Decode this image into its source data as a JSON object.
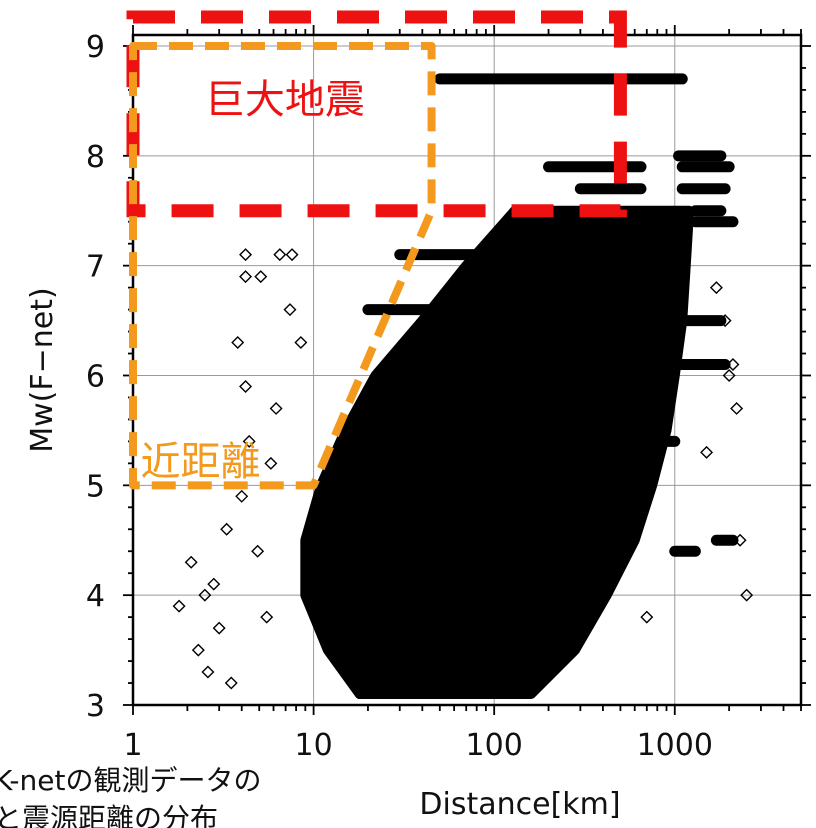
{
  "chart_data": {
    "type": "scatter",
    "xlabel": "Distance[km]",
    "ylabel": "Mw(F−net)",
    "xscale": "log",
    "xlim": [
      1,
      5000
    ],
    "ylim": [
      3,
      9.1
    ],
    "x_ticks": [
      1,
      10,
      100,
      1000
    ],
    "x_tick_labels": [
      "1",
      "10",
      "100",
      "1000"
    ],
    "y_ticks": [
      3,
      4,
      5,
      6,
      7,
      8,
      9
    ],
    "y_tick_labels": [
      "3",
      "4",
      "5",
      "6",
      "7",
      "8",
      "9"
    ],
    "grid": true,
    "marker": "diamond-open",
    "marker_color": "#000000",
    "dense_cloud": [
      {
        "mw": 3.1,
        "x_min": 18,
        "x_max": 160
      },
      {
        "mw": 3.5,
        "x_min": 12,
        "x_max": 280
      },
      {
        "mw": 4.0,
        "x_min": 9,
        "x_max": 420
      },
      {
        "mw": 4.5,
        "x_min": 9,
        "x_max": 600
      },
      {
        "mw": 5.0,
        "x_min": 11,
        "x_max": 750
      },
      {
        "mw": 5.5,
        "x_min": 15,
        "x_max": 900
      },
      {
        "mw": 6.0,
        "x_min": 22,
        "x_max": 1000
      },
      {
        "mw": 6.5,
        "x_min": 40,
        "x_max": 1100
      },
      {
        "mw": 7.0,
        "x_min": 70,
        "x_max": 1150
      },
      {
        "mw": 7.5,
        "x_min": 130,
        "x_max": 1200
      }
    ],
    "bands": [
      {
        "mw": 8.7,
        "x_min": 50,
        "x_max": 1100
      },
      {
        "mw": 8.0,
        "x_min": 1050,
        "x_max": 1800
      },
      {
        "mw": 7.9,
        "x_min": 200,
        "x_max": 650
      },
      {
        "mw": 7.9,
        "x_min": 1100,
        "x_max": 2000
      },
      {
        "mw": 7.7,
        "x_min": 300,
        "x_max": 650
      },
      {
        "mw": 7.7,
        "x_min": 1100,
        "x_max": 1900
      },
      {
        "mw": 7.5,
        "x_min": 1300,
        "x_max": 1800
      },
      {
        "mw": 7.4,
        "x_min": 1300,
        "x_max": 2100
      },
      {
        "mw": 7.1,
        "x_min": 30,
        "x_max": 200
      },
      {
        "mw": 6.6,
        "x_min": 20,
        "x_max": 80
      },
      {
        "mw": 6.5,
        "x_min": 800,
        "x_max": 1800
      },
      {
        "mw": 6.1,
        "x_min": 900,
        "x_max": 1900
      },
      {
        "mw": 5.4,
        "x_min": 800,
        "x_max": 1000
      },
      {
        "mw": 4.5,
        "x_min": 1700,
        "x_max": 2100
      },
      {
        "mw": 4.4,
        "x_min": 1000,
        "x_max": 1300
      }
    ],
    "scatter_points": [
      {
        "x": 4.2,
        "y": 7.1
      },
      {
        "x": 4.2,
        "y": 6.9
      },
      {
        "x": 5.1,
        "y": 6.9
      },
      {
        "x": 6.5,
        "y": 7.1
      },
      {
        "x": 7.4,
        "y": 6.6
      },
      {
        "x": 7.6,
        "y": 7.1
      },
      {
        "x": 2.1,
        "y": 4.3
      },
      {
        "x": 1.8,
        "y": 3.9
      },
      {
        "x": 2.5,
        "y": 4.0
      },
      {
        "x": 3.0,
        "y": 3.7
      },
      {
        "x": 2.3,
        "y": 3.5
      },
      {
        "x": 4.4,
        "y": 5.4
      },
      {
        "x": 3.3,
        "y": 4.6
      },
      {
        "x": 4.0,
        "y": 4.9
      },
      {
        "x": 2.6,
        "y": 3.3
      },
      {
        "x": 3.8,
        "y": 6.3
      },
      {
        "x": 4.2,
        "y": 5.9
      },
      {
        "x": 2.8,
        "y": 4.1
      },
      {
        "x": 5.8,
        "y": 5.2
      },
      {
        "x": 4.9,
        "y": 4.4
      },
      {
        "x": 5.5,
        "y": 3.8
      },
      {
        "x": 6.2,
        "y": 5.7
      },
      {
        "x": 8.5,
        "y": 6.3
      },
      {
        "x": 3.5,
        "y": 3.2
      },
      {
        "x": 1700,
        "y": 6.8
      },
      {
        "x": 2200,
        "y": 5.7
      },
      {
        "x": 2500,
        "y": 4.0
      },
      {
        "x": 2000,
        "y": 6.0
      },
      {
        "x": 2300,
        "y": 4.5
      },
      {
        "x": 1500,
        "y": 5.3
      },
      {
        "x": 700,
        "y": 3.8
      },
      {
        "x": 1900,
        "y": 6.5
      },
      {
        "x": 2100,
        "y": 6.1
      }
    ],
    "annotations": [
      {
        "label": "巨大地震",
        "color": "#ee1111",
        "region": {
          "x": [
            1,
            500
          ],
          "y": [
            7.5,
            9.1
          ]
        }
      },
      {
        "label": "近距離",
        "color": "#f39a1e",
        "region_polygon": [
          [
            1,
            9.0
          ],
          [
            45,
            9.0
          ],
          [
            45,
            7.5
          ],
          [
            10,
            5.0
          ],
          [
            1,
            5.0
          ]
        ]
      }
    ]
  },
  "caption": {
    "line1": "K-netの観測データの",
    "line2": "と震源距離の分布"
  }
}
